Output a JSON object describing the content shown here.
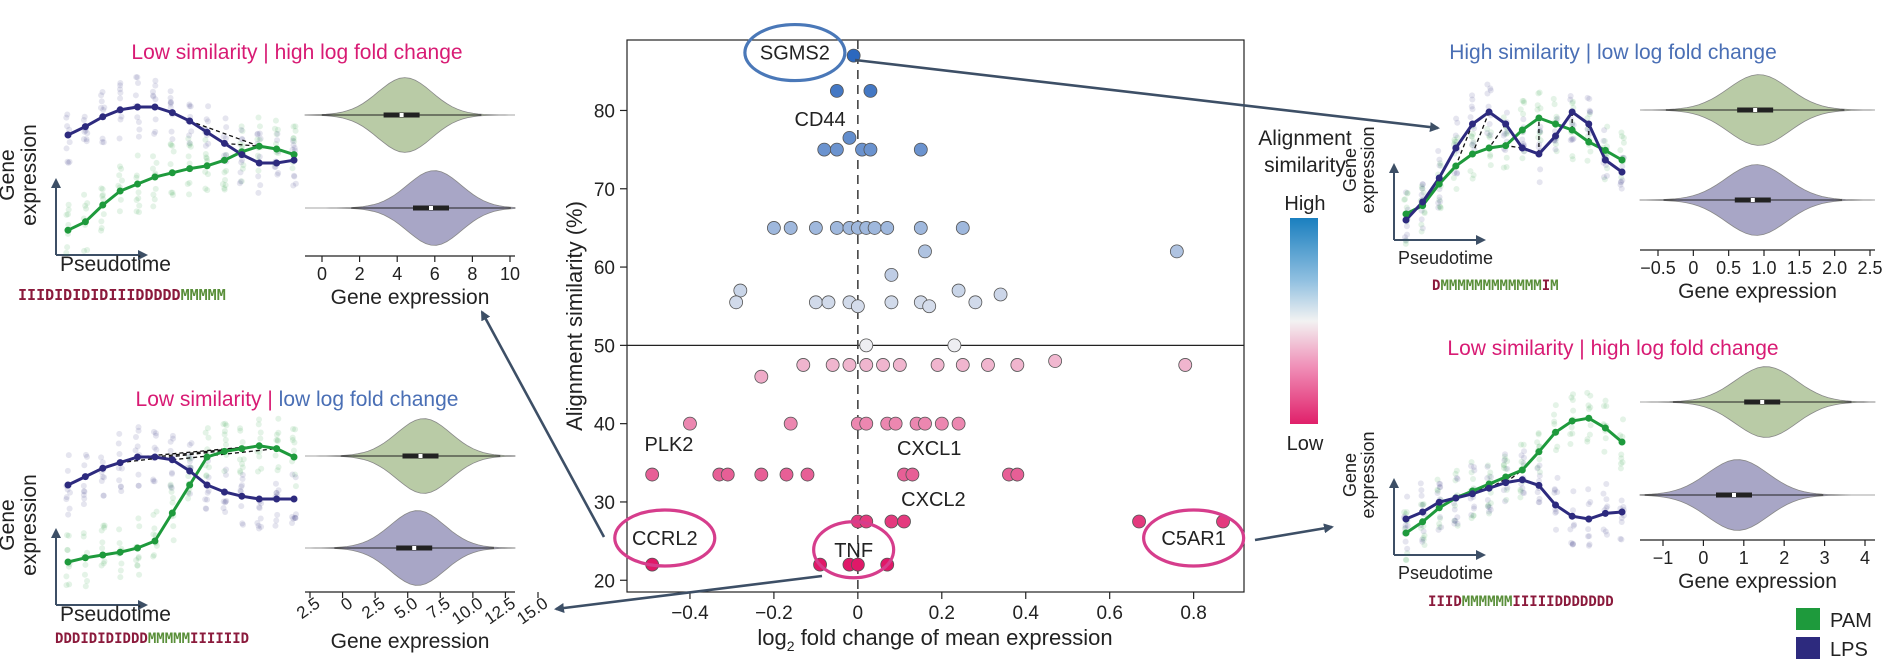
{
  "colors": {
    "pink": "#d81b74",
    "blue": "#4a6fb5",
    "pam": "#1e9a3c",
    "lps": "#2d2a7e",
    "violin_pam": "#b9cba6",
    "violin_lps": "#a8a6c6",
    "alignment_M": "#5a8f3a",
    "alignment_ID": "#8b1a3c",
    "arrow": "#3d4f66"
  },
  "chart_data": {
    "type": "scatter",
    "xlabel_main": "log",
    "xlabel_sub": "2",
    "xlabel_rest": " fold change of mean expression",
    "ylabel": "Alignment similarity (%)",
    "xlim": [
      -0.55,
      0.92
    ],
    "ylim": [
      18.5,
      89
    ],
    "xticks": [
      "−0.4",
      "−0.2",
      "0",
      "0.2",
      "0.4",
      "0.6",
      "0.8"
    ],
    "xtick_values": [
      -0.4,
      -0.2,
      0,
      0.2,
      0.4,
      0.6,
      0.8
    ],
    "yticks": [
      "20",
      "30",
      "40",
      "50",
      "60",
      "70",
      "80"
    ],
    "ytick_values": [
      20,
      30,
      40,
      50,
      60,
      70,
      80
    ],
    "hline": 50,
    "vline": 0,
    "points": [
      {
        "x": -0.01,
        "y": 87
      },
      {
        "x": -0.05,
        "y": 82.5
      },
      {
        "x": 0.03,
        "y": 82.5
      },
      {
        "x": -0.02,
        "y": 76.5
      },
      {
        "x": -0.08,
        "y": 75
      },
      {
        "x": -0.05,
        "y": 75
      },
      {
        "x": 0.01,
        "y": 75
      },
      {
        "x": 0.03,
        "y": 75
      },
      {
        "x": 0.15,
        "y": 75
      },
      {
        "x": -0.2,
        "y": 65
      },
      {
        "x": -0.16,
        "y": 65
      },
      {
        "x": -0.1,
        "y": 65
      },
      {
        "x": -0.05,
        "y": 65
      },
      {
        "x": -0.02,
        "y": 65
      },
      {
        "x": 0.0,
        "y": 65
      },
      {
        "x": 0.02,
        "y": 65
      },
      {
        "x": 0.04,
        "y": 65
      },
      {
        "x": 0.07,
        "y": 65
      },
      {
        "x": 0.15,
        "y": 65
      },
      {
        "x": 0.25,
        "y": 65
      },
      {
        "x": 0.16,
        "y": 62
      },
      {
        "x": 0.76,
        "y": 62
      },
      {
        "x": 0.08,
        "y": 59
      },
      {
        "x": -0.28,
        "y": 57
      },
      {
        "x": -0.29,
        "y": 55.5
      },
      {
        "x": -0.1,
        "y": 55.5
      },
      {
        "x": -0.07,
        "y": 55.5
      },
      {
        "x": -0.02,
        "y": 55.5
      },
      {
        "x": 0.0,
        "y": 55
      },
      {
        "x": 0.08,
        "y": 55.5
      },
      {
        "x": 0.15,
        "y": 55.5
      },
      {
        "x": 0.17,
        "y": 55
      },
      {
        "x": 0.24,
        "y": 57
      },
      {
        "x": 0.28,
        "y": 55.5
      },
      {
        "x": 0.34,
        "y": 56.5
      },
      {
        "x": 0.02,
        "y": 50
      },
      {
        "x": 0.23,
        "y": 50
      },
      {
        "x": -0.23,
        "y": 46
      },
      {
        "x": -0.13,
        "y": 47.5
      },
      {
        "x": -0.06,
        "y": 47.5
      },
      {
        "x": -0.02,
        "y": 47.5
      },
      {
        "x": 0.02,
        "y": 47.5
      },
      {
        "x": 0.06,
        "y": 47.5
      },
      {
        "x": 0.1,
        "y": 47.5
      },
      {
        "x": 0.19,
        "y": 47.5
      },
      {
        "x": 0.25,
        "y": 47.5
      },
      {
        "x": 0.31,
        "y": 47.5
      },
      {
        "x": 0.38,
        "y": 47.5
      },
      {
        "x": 0.47,
        "y": 48
      },
      {
        "x": 0.78,
        "y": 47.5
      },
      {
        "x": -0.4,
        "y": 40
      },
      {
        "x": -0.16,
        "y": 40
      },
      {
        "x": 0.0,
        "y": 40
      },
      {
        "x": 0.02,
        "y": 40
      },
      {
        "x": 0.07,
        "y": 40
      },
      {
        "x": 0.09,
        "y": 40
      },
      {
        "x": 0.14,
        "y": 40
      },
      {
        "x": 0.16,
        "y": 40
      },
      {
        "x": 0.2,
        "y": 40
      },
      {
        "x": 0.24,
        "y": 40
      },
      {
        "x": -0.49,
        "y": 33.5
      },
      {
        "x": -0.33,
        "y": 33.5
      },
      {
        "x": -0.31,
        "y": 33.5
      },
      {
        "x": -0.23,
        "y": 33.5
      },
      {
        "x": -0.17,
        "y": 33.5
      },
      {
        "x": -0.12,
        "y": 33.5
      },
      {
        "x": 0.11,
        "y": 33.5
      },
      {
        "x": 0.13,
        "y": 33.5
      },
      {
        "x": 0.36,
        "y": 33.5
      },
      {
        "x": 0.38,
        "y": 33.5
      },
      {
        "x": 0.0,
        "y": 27.5
      },
      {
        "x": 0.02,
        "y": 27.5
      },
      {
        "x": 0.08,
        "y": 27.5
      },
      {
        "x": 0.11,
        "y": 27.5
      },
      {
        "x": 0.67,
        "y": 27.5
      },
      {
        "x": 0.87,
        "y": 27.5
      },
      {
        "x": -0.49,
        "y": 22
      },
      {
        "x": -0.09,
        "y": 22
      },
      {
        "x": -0.02,
        "y": 22
      },
      {
        "x": 0.0,
        "y": 22
      },
      {
        "x": 0.07,
        "y": 22
      }
    ],
    "gene_labels": [
      {
        "text": "SGMS2",
        "x": -0.15,
        "y": 86.5,
        "circled": true,
        "ring": "blue"
      },
      {
        "text": "CD44",
        "x": -0.09,
        "y": 78
      },
      {
        "text": "PLK2",
        "x": -0.45,
        "y": 36.5
      },
      {
        "text": "CXCL1",
        "x": 0.17,
        "y": 36
      },
      {
        "text": "CXCL2",
        "x": 0.18,
        "y": 29.5
      },
      {
        "text": "CCRL2",
        "x": -0.46,
        "y": 24.5,
        "circled": true,
        "ring": "pink"
      },
      {
        "text": "TNF",
        "x": -0.01,
        "y": 23,
        "circled": true,
        "ring": "pink"
      },
      {
        "text": "C5AR1",
        "x": 0.8,
        "y": 24.5,
        "circled": true,
        "ring": "pink"
      }
    ],
    "colorbar": {
      "title_line1": "Alignment",
      "title_line2": "similarity",
      "high": "High",
      "low": "Low"
    }
  },
  "panels": {
    "top_left": {
      "title": "Low similarity | high log fold change",
      "title_color": "pink",
      "ylabel_1": "Gene",
      "ylabel_2": "expression",
      "xlabel": "Pseudotime",
      "alignment": "IIIDIDIDIDIIIDDDDDMMMMM",
      "violin_xlabel": "Gene expression",
      "violin_ticks": [
        "0",
        "2",
        "4",
        "6",
        "8",
        "10"
      ]
    },
    "bottom_left": {
      "title_a": "Low similarity",
      "title_sep": " | ",
      "title_b": "low log fold change",
      "ylabel_1": "Gene",
      "ylabel_2": "expression",
      "xlabel": "Pseudotime",
      "alignment": "DDDIDIDIDDDMMMMMIIIIIID",
      "violin_xlabel": "Gene expression",
      "violin_ticks": [
        "2.5",
        "0",
        "2.5",
        "5.0",
        "7.5",
        "10.0",
        "12.5",
        "15.0"
      ]
    },
    "top_right": {
      "title": "High similarity | low log fold change",
      "title_color": "blue",
      "ylabel_1": "Gene",
      "ylabel_2": "expression",
      "xlabel": "Pseudotime",
      "alignment": "DMMMMMMMMMMMMIM",
      "violin_xlabel": "Gene expression",
      "violin_ticks": [
        "−0.5",
        "0",
        "0.5",
        "1.0",
        "1.5",
        "2.0",
        "2.5"
      ]
    },
    "bottom_right": {
      "title": "Low similarity | high log fold change",
      "title_color": "pink",
      "ylabel_1": "Gene",
      "ylabel_2": "expression",
      "xlabel": "Pseudotime",
      "alignment": "IIIDMMMMMMIIIIIDDDDDDD",
      "violin_xlabel": "Gene expression",
      "violin_ticks": [
        "−1",
        "0",
        "1",
        "2",
        "3",
        "4"
      ]
    }
  },
  "legend": [
    {
      "name": "PAM",
      "color": "pam"
    },
    {
      "name": "LPS",
      "color": "lps"
    }
  ]
}
